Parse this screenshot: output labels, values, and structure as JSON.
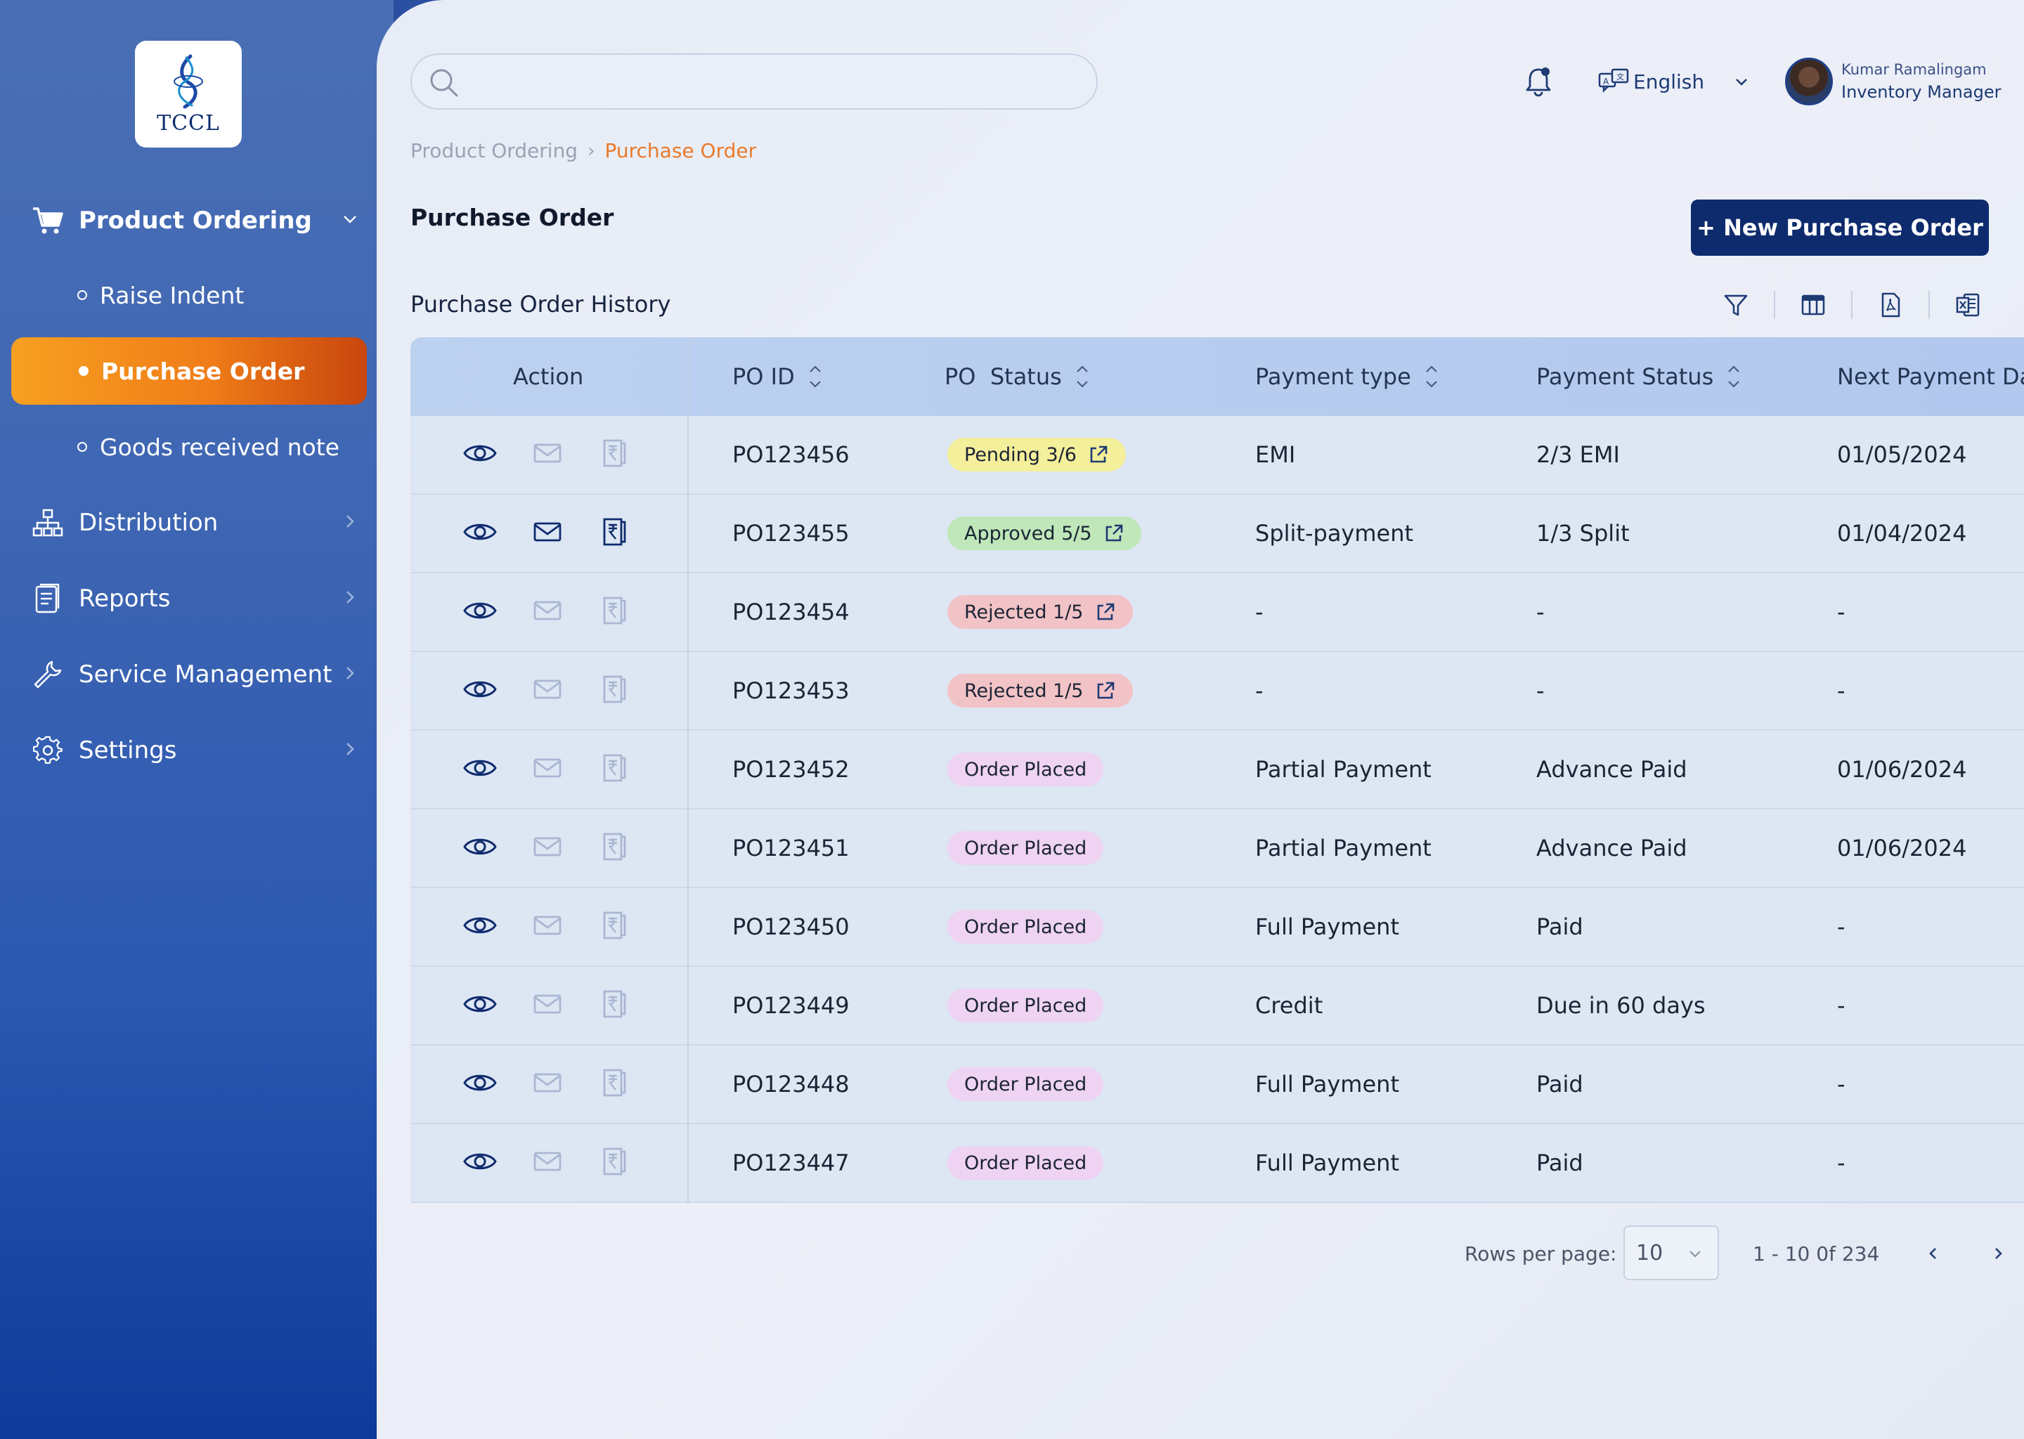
{
  "app": {
    "logo_text": "TCCL"
  },
  "sidebar": {
    "items": [
      {
        "label": "Product Ordering",
        "icon": "cart-icon",
        "expanded": true
      },
      {
        "label": "Distribution",
        "icon": "sitemap-icon"
      },
      {
        "label": "Reports",
        "icon": "report-icon"
      },
      {
        "label": "Service Management",
        "icon": "wrench-icon"
      },
      {
        "label": "Settings",
        "icon": "gear-icon"
      }
    ],
    "sub_items": [
      {
        "label": "Raise Indent"
      },
      {
        "label": "Purchase Order",
        "active": true
      },
      {
        "label": "Goods received note"
      }
    ]
  },
  "header": {
    "search_placeholder": "",
    "language": "English",
    "user": {
      "name": "Kumar Ramalingam",
      "role": "Inventory Manager"
    }
  },
  "breadcrumb": {
    "parent": "Product Ordering",
    "current": "Purchase Order"
  },
  "page": {
    "title": "Purchase Order",
    "new_button": "+ New Purchase Order",
    "section_title": "Purchase Order History"
  },
  "table": {
    "columns": [
      "Action",
      "PO ID",
      "PO  Status",
      "Payment type",
      "Payment Status",
      "Next Payment Da"
    ],
    "rows": [
      {
        "po_id": "PO123456",
        "status": "Pending 3/6",
        "status_type": "pending",
        "payment_type": "EMI",
        "payment_status": "2/3 EMI",
        "next_payment": "01/05/2024",
        "actions_enabled": false
      },
      {
        "po_id": "PO123455",
        "status": "Approved 5/5",
        "status_type": "approved",
        "payment_type": "Split-payment",
        "payment_status": "1/3 Split",
        "next_payment": "01/04/2024",
        "actions_enabled": true
      },
      {
        "po_id": "PO123454",
        "status": "Rejected 1/5",
        "status_type": "rejected",
        "payment_type": "-",
        "payment_status": "-",
        "next_payment": "-",
        "actions_enabled": false
      },
      {
        "po_id": "PO123453",
        "status": "Rejected 1/5",
        "status_type": "rejected",
        "payment_type": "-",
        "payment_status": "-",
        "next_payment": "-",
        "actions_enabled": false
      },
      {
        "po_id": "PO123452",
        "status": "Order Placed",
        "status_type": "placed",
        "payment_type": "Partial Payment",
        "payment_status": "Advance Paid",
        "next_payment": "01/06/2024",
        "actions_enabled": false
      },
      {
        "po_id": "PO123451",
        "status": "Order Placed",
        "status_type": "placed",
        "payment_type": "Partial Payment",
        "payment_status": "Advance Paid",
        "next_payment": "01/06/2024",
        "actions_enabled": false
      },
      {
        "po_id": "PO123450",
        "status": "Order Placed",
        "status_type": "placed",
        "payment_type": "Full Payment",
        "payment_status": "Paid",
        "next_payment": "-",
        "actions_enabled": false
      },
      {
        "po_id": "PO123449",
        "status": "Order Placed",
        "status_type": "placed",
        "payment_type": "Credit",
        "payment_status": "Due in 60 days",
        "next_payment": "-",
        "actions_enabled": false
      },
      {
        "po_id": "PO123448",
        "status": "Order Placed",
        "status_type": "placed",
        "payment_type": "Full Payment",
        "payment_status": "Paid",
        "next_payment": "-",
        "actions_enabled": false
      },
      {
        "po_id": "PO123447",
        "status": "Order Placed",
        "status_type": "placed",
        "payment_type": "Full Payment",
        "payment_status": "Paid",
        "next_payment": "-",
        "actions_enabled": false
      }
    ]
  },
  "pagination": {
    "rows_label": "Rows per page:",
    "rows_value": "10",
    "range": "1 - 10 0f 234"
  },
  "colors": {
    "accent_orange": "#f07d18",
    "primary_navy": "#0e2b6d",
    "pending": "#f4ef9a",
    "approved": "#bfe7b9",
    "rejected": "#f2c3c6",
    "placed": "#efd3f3"
  }
}
